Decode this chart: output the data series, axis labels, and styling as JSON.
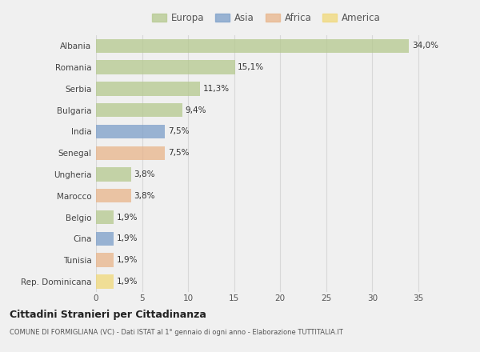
{
  "countries": [
    "Albania",
    "Romania",
    "Serbia",
    "Bulgaria",
    "India",
    "Senegal",
    "Ungheria",
    "Marocco",
    "Belgio",
    "Cina",
    "Tunisia",
    "Rep. Dominicana"
  ],
  "values": [
    34.0,
    15.1,
    11.3,
    9.4,
    7.5,
    7.5,
    3.8,
    3.8,
    1.9,
    1.9,
    1.9,
    1.9
  ],
  "labels": [
    "34,0%",
    "15,1%",
    "11,3%",
    "9,4%",
    "7,5%",
    "7,5%",
    "3,8%",
    "3,8%",
    "1,9%",
    "1,9%",
    "1,9%",
    "1,9%"
  ],
  "colors": [
    "#b5c98e",
    "#b5c98e",
    "#b5c98e",
    "#b5c98e",
    "#7b9ec9",
    "#e8b48a",
    "#b5c98e",
    "#e8b48a",
    "#b5c98e",
    "#7b9ec9",
    "#e8b48a",
    "#f0d878"
  ],
  "legend_labels": [
    "Europa",
    "Asia",
    "Africa",
    "America"
  ],
  "legend_colors": [
    "#b5c98e",
    "#7b9ec9",
    "#e8b48a",
    "#f0d878"
  ],
  "title": "Cittadini Stranieri per Cittadinanza",
  "subtitle": "COMUNE DI FORMIGLIANA (VC) - Dati ISTAT al 1° gennaio di ogni anno - Elaborazione TUTTITALIA.IT",
  "xlabel_vals": [
    0,
    5,
    10,
    15,
    20,
    25,
    30,
    35
  ],
  "xlim": [
    0,
    37
  ],
  "bg_color": "#f0f0f0",
  "plot_bg_color": "#f0f0f0",
  "grid_color": "#d8d8d8"
}
